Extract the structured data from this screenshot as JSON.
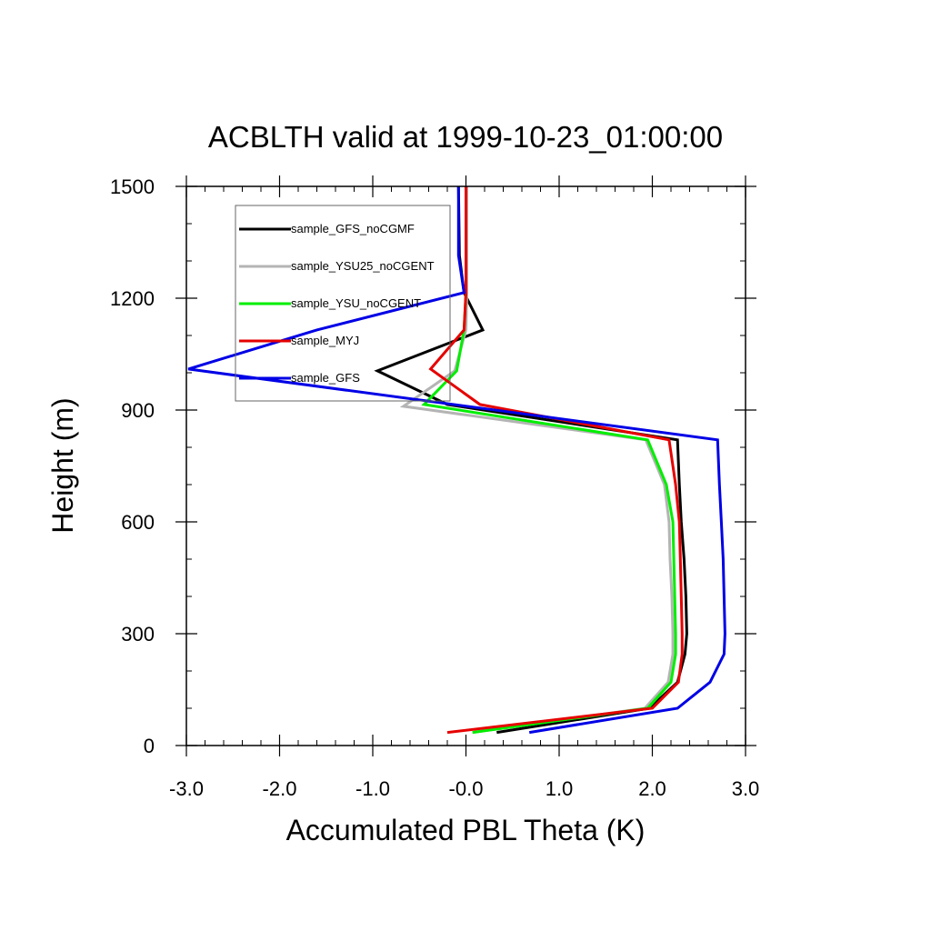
{
  "chart_data": {
    "type": "line",
    "title": "ACBLTH valid at 1999-10-23_01:00:00",
    "xlabel": "Accumulated PBL Theta (K)",
    "ylabel": "Height (m)",
    "xlim": [
      -3.0,
      3.0
    ],
    "ylim": [
      0,
      1500
    ],
    "x_ticks": [
      -3.0,
      -2.0,
      -1.0,
      0.0,
      1.0,
      2.0,
      3.0
    ],
    "x_tick_labels": [
      "-3.0",
      "-2.0",
      "-1.0",
      "-0.0",
      "1.0",
      "2.0",
      "3.0"
    ],
    "y_ticks": [
      0,
      300,
      600,
      900,
      1200,
      1500
    ],
    "y_tick_labels": [
      "0",
      "300",
      "600",
      "900",
      "1200",
      "1500"
    ],
    "legend_position": "top-left",
    "series": [
      {
        "name": "sample_GFS_noCGMF",
        "color": "#000000",
        "points": [
          [
            0.33,
            35
          ],
          [
            1.97,
            100
          ],
          [
            2.27,
            170
          ],
          [
            2.35,
            245
          ],
          [
            2.37,
            300
          ],
          [
            2.36,
            400
          ],
          [
            2.34,
            500
          ],
          [
            2.31,
            600
          ],
          [
            2.29,
            700
          ],
          [
            2.27,
            820
          ],
          [
            -0.2,
            915
          ],
          [
            -0.95,
            1005
          ],
          [
            0.18,
            1115
          ],
          [
            -0.02,
            1215
          ],
          [
            -0.07,
            1315
          ],
          [
            -0.08,
            1500
          ]
        ]
      },
      {
        "name": "sample_YSU25_noCGENT",
        "color": "#b4b4b4",
        "points": [
          [
            0.07,
            35
          ],
          [
            1.92,
            100
          ],
          [
            2.17,
            170
          ],
          [
            2.22,
            245
          ],
          [
            2.22,
            300
          ],
          [
            2.21,
            400
          ],
          [
            2.19,
            500
          ],
          [
            2.18,
            600
          ],
          [
            2.13,
            700
          ],
          [
            1.93,
            820
          ],
          [
            -0.67,
            910
          ],
          [
            -0.12,
            1005
          ],
          [
            0.0,
            1115
          ],
          [
            0.01,
            1215
          ],
          [
            0.01,
            1500
          ]
        ]
      },
      {
        "name": "sample_YSU_noCGENT",
        "color": "#00ee00",
        "points": [
          [
            0.07,
            35
          ],
          [
            1.95,
            100
          ],
          [
            2.2,
            170
          ],
          [
            2.25,
            245
          ],
          [
            2.25,
            300
          ],
          [
            2.24,
            400
          ],
          [
            2.23,
            500
          ],
          [
            2.22,
            600
          ],
          [
            2.15,
            700
          ],
          [
            1.95,
            820
          ],
          [
            -0.45,
            915
          ],
          [
            -0.1,
            1005
          ],
          [
            -0.02,
            1115
          ],
          [
            0.0,
            1215
          ],
          [
            0.0,
            1500
          ]
        ]
      },
      {
        "name": "sample_MYJ",
        "color": "#e60000",
        "points": [
          [
            -0.2,
            35
          ],
          [
            2.0,
            100
          ],
          [
            2.28,
            170
          ],
          [
            2.32,
            245
          ],
          [
            2.32,
            300
          ],
          [
            2.31,
            400
          ],
          [
            2.3,
            500
          ],
          [
            2.29,
            600
          ],
          [
            2.25,
            700
          ],
          [
            2.18,
            820
          ],
          [
            0.15,
            915
          ],
          [
            -0.38,
            1010
          ],
          [
            -0.02,
            1115
          ],
          [
            0.0,
            1215
          ],
          [
            0.0,
            1500
          ]
        ]
      },
      {
        "name": "sample_GFS",
        "color": "#0000e6",
        "points": [
          [
            0.68,
            35
          ],
          [
            2.27,
            100
          ],
          [
            2.62,
            170
          ],
          [
            2.77,
            245
          ],
          [
            2.78,
            300
          ],
          [
            2.77,
            400
          ],
          [
            2.76,
            500
          ],
          [
            2.74,
            600
          ],
          [
            2.72,
            700
          ],
          [
            2.7,
            820
          ],
          [
            -2.98,
            1010
          ],
          [
            -1.6,
            1115
          ],
          [
            -0.02,
            1215
          ],
          [
            -0.08,
            1315
          ],
          [
            -0.08,
            1500
          ]
        ]
      }
    ]
  }
}
